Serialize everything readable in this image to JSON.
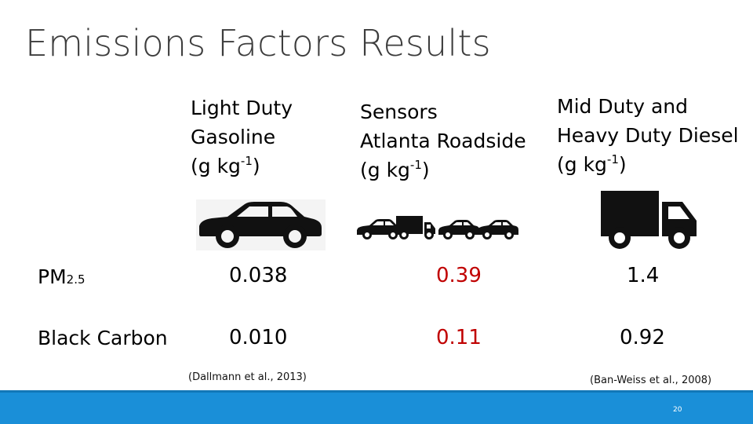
{
  "title": "Emissions Factors Results",
  "columns": {
    "light": {
      "line1": "Light Duty",
      "line2": "Gasoline",
      "unit_pre": "(g kg",
      "unit_sup": "-1",
      "unit_post": ")"
    },
    "sensors": {
      "line1": "Sensors",
      "line2": "Atlanta Roadside",
      "unit_pre": "(g kg",
      "unit_sup": "-1",
      "unit_post": ")"
    },
    "heavy": {
      "line1": "Mid Duty and",
      "line2": "Heavy Duty Diesel",
      "unit_pre": "(g kg",
      "unit_sup": "-1",
      "unit_post": ")"
    }
  },
  "rows": [
    {
      "label_main": "PM",
      "label_sub": "2.5",
      "light": "0.038",
      "sensors": "0.39",
      "heavy": "1.4"
    },
    {
      "label_main": "Black Carbon",
      "label_sub": "",
      "light": "0.010",
      "sensors": "0.11",
      "heavy": "0.92"
    }
  ],
  "citations": {
    "light": "(Dallmann et al., 2013)",
    "heavy": "(Ban-Weiss et al., 2008)"
  },
  "colors": {
    "footer": "#1a8fd8",
    "highlight": "#c00000"
  },
  "icons": {
    "light": "car-icon",
    "sensors": "traffic-icon",
    "heavy": "truck-icon"
  },
  "page_number": "20"
}
